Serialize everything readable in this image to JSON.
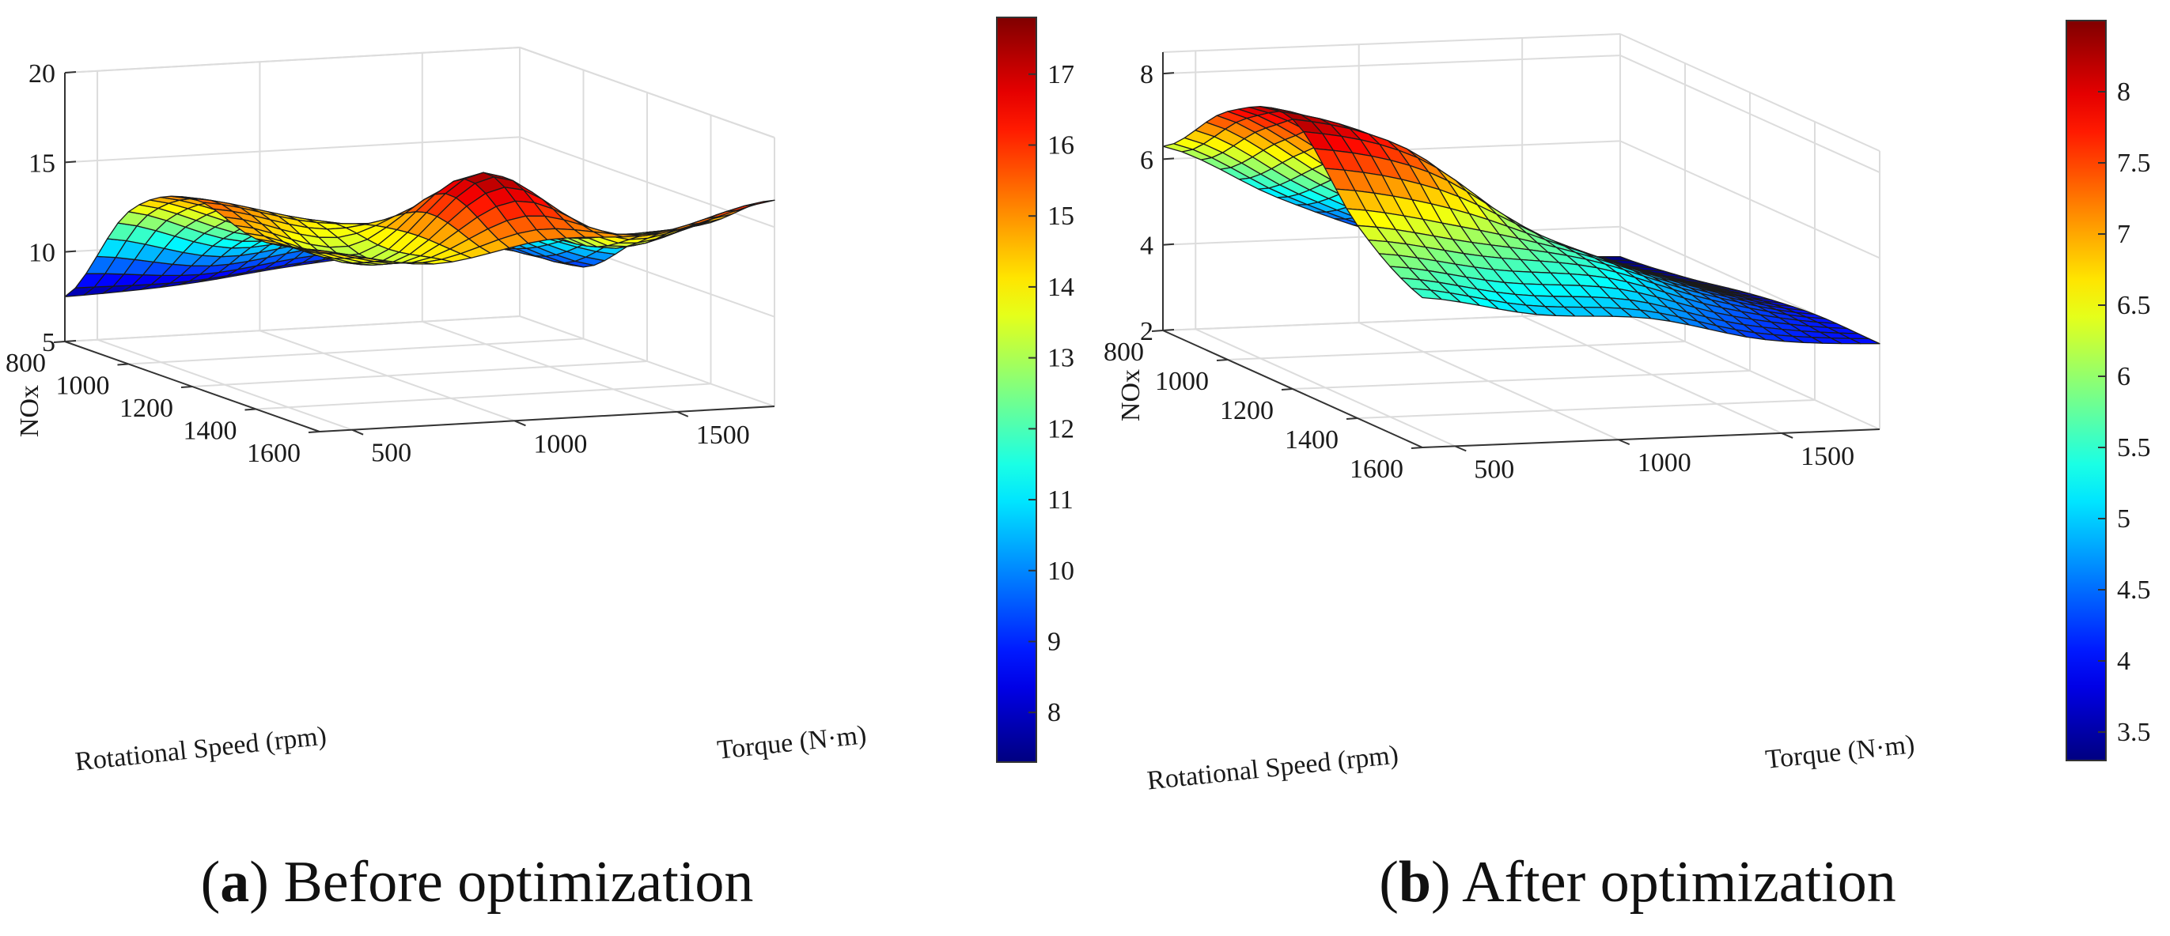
{
  "chart_data": [
    {
      "type": "surface",
      "panel": "a",
      "caption_letter": "a",
      "caption_text": "Before optimization",
      "xlabel": "Rotational Speed (rpm)",
      "ylabel": "Torque (N·m)",
      "zlabel": "NOx",
      "x_ticks": [
        "800",
        "1000",
        "1200",
        "1400",
        "1600"
      ],
      "y_ticks": [
        "500",
        "1000",
        "1500"
      ],
      "z_ticks": [
        "5",
        "10",
        "15",
        "20"
      ],
      "colorbar_ticks": [
        "8",
        "9",
        "10",
        "11",
        "12",
        "13",
        "14",
        "15",
        "16",
        "17"
      ],
      "xlim": [
        800,
        1600
      ],
      "ylim": [
        400,
        1800
      ],
      "zlim": [
        5,
        20
      ],
      "clim": [
        7.3,
        17.8
      ],
      "x": [
        800,
        1000,
        1200,
        1400,
        1600
      ],
      "y": [
        400,
        750,
        1100,
        1450,
        1800
      ],
      "z": [
        [
          7.5,
          13.5,
          15.5,
          14.5,
          15.0
        ],
        [
          7.8,
          11.5,
          14.0,
          13.0,
          14.0
        ],
        [
          8.5,
          12.0,
          13.0,
          17.5,
          15.0
        ],
        [
          9.0,
          11.5,
          12.5,
          13.0,
          15.0
        ],
        [
          9.5,
          9.0,
          12.0,
          14.0,
          16.5
        ]
      ],
      "colormap": "jet",
      "grid": true
    },
    {
      "type": "surface",
      "panel": "b",
      "caption_letter": "b",
      "caption_text": "After optimization",
      "xlabel": "Rotational Speed (rpm)",
      "ylabel": "Torque (N·m)",
      "zlabel": "NOx",
      "x_ticks": [
        "800",
        "1000",
        "1200",
        "1400",
        "1600"
      ],
      "y_ticks": [
        "500",
        "1000",
        "1500"
      ],
      "z_ticks": [
        "2",
        "4",
        "6",
        "8"
      ],
      "colorbar_ticks": [
        "3.5",
        "4",
        "4.5",
        "5",
        "5.5",
        "6",
        "6.5",
        "7",
        "7.5",
        "8"
      ],
      "xlim": [
        800,
        1600
      ],
      "ylim": [
        400,
        1800
      ],
      "zlim": [
        2,
        8.5
      ],
      "clim": [
        3.3,
        8.5
      ],
      "x": [
        800,
        1000,
        1200,
        1400,
        1600
      ],
      "y": [
        400,
        750,
        1100,
        1450,
        1800
      ],
      "z": [
        [
          6.3,
          7.8,
          8.3,
          6.5,
          5.5
        ],
        [
          5.0,
          6.2,
          7.5,
          6.0,
          5.0
        ],
        [
          4.0,
          4.8,
          5.5,
          5.5,
          4.8
        ],
        [
          3.5,
          4.0,
          4.5,
          4.6,
          4.2
        ],
        [
          3.3,
          3.5,
          3.8,
          4.0,
          4.0
        ]
      ],
      "colormap": "jet",
      "grid": true
    }
  ]
}
